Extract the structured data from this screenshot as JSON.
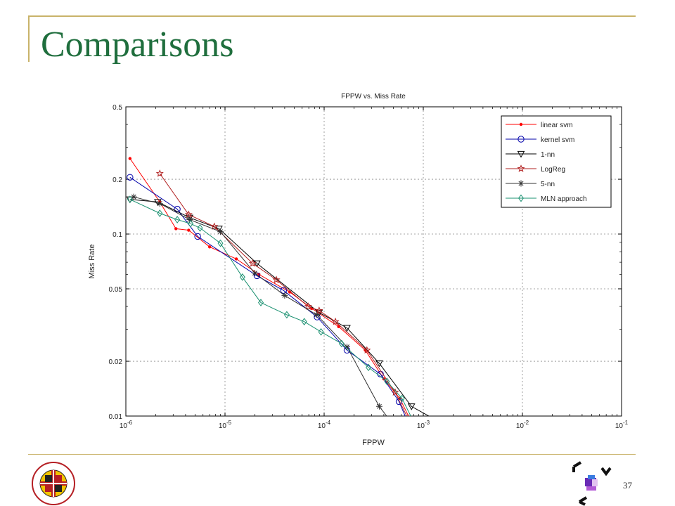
{
  "slide": {
    "title": "Comparisons",
    "page_number": "37",
    "logo_left_icon": "university-of-maryland-seal-icon",
    "logo_left_text": "UNIVERSITY OF MARYLAND",
    "logo_right_icon": "cv-lab-logo-icon",
    "accent_color": "#1f6e3d",
    "frame_color": "#c9b36a"
  },
  "chart_data": {
    "type": "line",
    "title": "FPPW vs. Miss Rate",
    "xlabel": "FPPW",
    "ylabel": "Miss Rate",
    "xscale": "log",
    "yscale": "log",
    "xlim": [
      1e-06,
      0.1
    ],
    "ylim": [
      0.01,
      0.5
    ],
    "grid": true,
    "legend_position": "top-right",
    "x_ticks": [
      {
        "value": 1e-06,
        "base": "10",
        "exp": "-6"
      },
      {
        "value": 1e-05,
        "base": "10",
        "exp": "-5"
      },
      {
        "value": 0.0001,
        "base": "10",
        "exp": "-4"
      },
      {
        "value": 0.001,
        "base": "10",
        "exp": "-3"
      },
      {
        "value": 0.01,
        "base": "10",
        "exp": "-2"
      },
      {
        "value": 0.1,
        "base": "10",
        "exp": "-1"
      }
    ],
    "y_ticks": [
      {
        "value": 0.01,
        "label": "0.01"
      },
      {
        "value": 0.02,
        "label": "0.02"
      },
      {
        "value": 0.05,
        "label": "0.05"
      },
      {
        "value": 0.1,
        "label": "0.1"
      },
      {
        "value": 0.2,
        "label": "0.2"
      },
      {
        "value": 0.5,
        "label": "0.5"
      }
    ],
    "series": [
      {
        "name": "linear svm",
        "color": "#ff0000",
        "marker": "dot",
        "x": [
          1.1e-06,
          2.2e-06,
          3.2e-06,
          4.3e-06,
          7e-06,
          1.3e-05,
          2.2e-05,
          4.5e-05,
          7.5e-05,
          0.00014,
          0.00026,
          0.0004,
          0.00058,
          0.00075
        ],
        "y": [
          0.26,
          0.15,
          0.107,
          0.105,
          0.085,
          0.073,
          0.06,
          0.048,
          0.039,
          0.031,
          0.023,
          0.016,
          0.0125,
          0.0094
        ]
      },
      {
        "name": "kernel svm",
        "color": "#0000aa",
        "marker": "circle",
        "x": [
          1.1e-06,
          3.3e-06,
          5.3e-06,
          2.1e-05,
          3.9e-05,
          8.5e-05,
          0.00017,
          0.00037,
          0.00057,
          0.0007
        ],
        "y": [
          0.205,
          0.137,
          0.097,
          0.059,
          0.049,
          0.035,
          0.023,
          0.017,
          0.012,
          0.0092
        ]
      },
      {
        "name": "1-nn",
        "color": "#000000",
        "marker": "triangle-down",
        "x": [
          1.1e-06,
          2.1e-06,
          4.4e-06,
          8.7e-06,
          2.1e-05,
          8.9e-05,
          0.00017,
          0.00036,
          0.00076,
          0.0015
        ],
        "y": [
          0.155,
          0.15,
          0.123,
          0.107,
          0.069,
          0.037,
          0.0305,
          0.0195,
          0.0113,
          0.0092
        ]
      },
      {
        "name": "LogReg",
        "color": "#b22222",
        "marker": "star",
        "x": [
          2.2e-06,
          4.3e-06,
          7.8e-06,
          1.9e-05,
          3.3e-05,
          6.9e-05,
          8.9e-05,
          0.00013,
          0.00027,
          0.00052,
          0.00072
        ],
        "y": [
          0.215,
          0.128,
          0.11,
          0.069,
          0.056,
          0.04,
          0.038,
          0.033,
          0.023,
          0.0135,
          0.0094
        ]
      },
      {
        "name": "5-nn",
        "color": "#333333",
        "marker": "asterisk",
        "x": [
          1.2e-06,
          2.2e-06,
          4.4e-06,
          9e-06,
          2e-05,
          4e-05,
          8.4e-05,
          0.00017,
          0.00036,
          0.00046
        ],
        "y": [
          0.16,
          0.147,
          0.12,
          0.103,
          0.061,
          0.046,
          0.036,
          0.024,
          0.0113,
          0.0095
        ]
      },
      {
        "name": "MLN approach",
        "color": "#1a9070",
        "marker": "diamond",
        "x": [
          1.1e-06,
          2.2e-06,
          3.3e-06,
          4.5e-06,
          5.6e-06,
          9e-06,
          1.5e-05,
          2.3e-05,
          4.2e-05,
          6.3e-05,
          9.3e-05,
          0.00015,
          0.00028,
          0.00043,
          0.00061,
          0.0008
        ],
        "y": [
          0.155,
          0.13,
          0.12,
          0.114,
          0.108,
          0.089,
          0.058,
          0.042,
          0.036,
          0.033,
          0.029,
          0.025,
          0.0185,
          0.0155,
          0.0125,
          0.0093
        ]
      }
    ]
  }
}
